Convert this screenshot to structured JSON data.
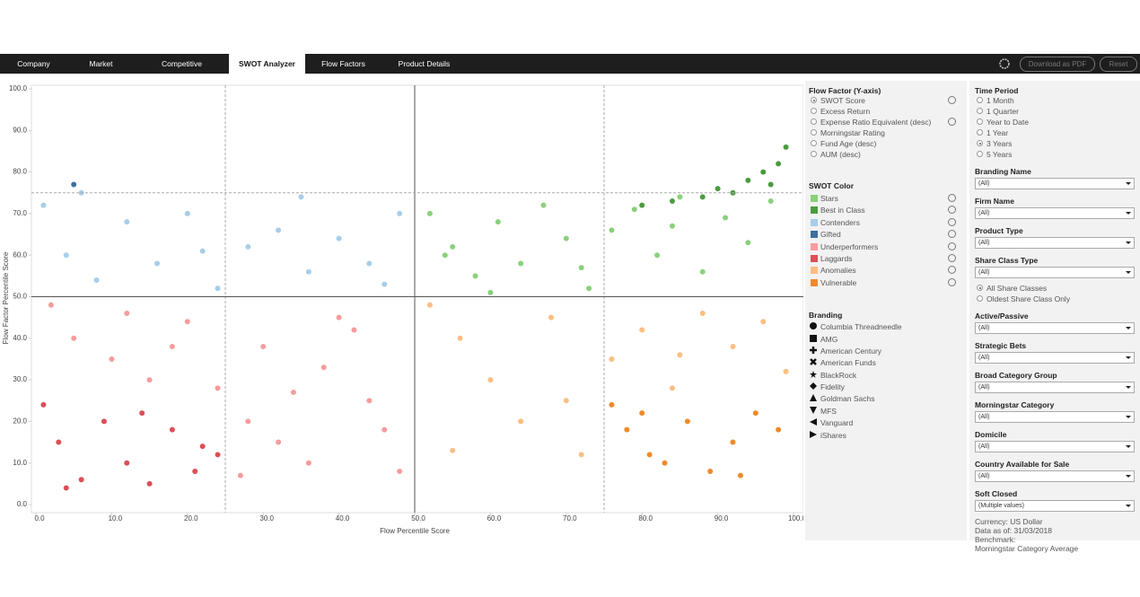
{
  "nav": {
    "tabs": [
      "Company",
      "Market",
      "Competitive",
      "SWOT Analyzer",
      "Flow Factors",
      "Product Details"
    ],
    "active": 3,
    "buttons": [
      "Download as PDF",
      "Reset"
    ]
  },
  "chart_data": {
    "type": "scatter",
    "x_label": "Flow Percentile Score",
    "y_label": "Flow Factor Percentile Score",
    "xlim": [
      0,
      100
    ],
    "ylim": [
      0,
      100
    ],
    "xticks": [
      {
        "value": 0,
        "label": "0.0"
      },
      {
        "value": 10,
        "label": "10.0"
      },
      {
        "value": 20,
        "label": "20.0"
      },
      {
        "value": 30,
        "label": "30.0"
      },
      {
        "value": 40,
        "label": "40.0"
      },
      {
        "value": 50,
        "label": "50.0"
      },
      {
        "value": 60,
        "label": "60.0"
      },
      {
        "value": 70,
        "label": "70.0"
      },
      {
        "value": 80,
        "label": "80.0"
      },
      {
        "value": 90,
        "label": "90.0"
      },
      {
        "value": 100,
        "label": "100.0"
      }
    ],
    "yticks": [
      {
        "value": 0,
        "label": "0.0"
      },
      {
        "value": 10,
        "label": "10.0"
      },
      {
        "value": 20,
        "label": "20.0"
      },
      {
        "value": 30,
        "label": "30.0"
      },
      {
        "value": 40,
        "label": "40.0"
      },
      {
        "value": 50,
        "label": "50.0"
      },
      {
        "value": 60,
        "label": "60.0"
      },
      {
        "value": 70,
        "label": "70.0"
      },
      {
        "value": 80,
        "label": "80.0"
      },
      {
        "value": 90,
        "label": "90.0"
      },
      {
        "value": 100,
        "label": "100.0"
      }
    ],
    "x_lines": [
      {
        "value": 25,
        "style": "dashed"
      },
      {
        "value": 50,
        "style": "solid"
      },
      {
        "value": 75,
        "style": "dashed"
      }
    ],
    "y_lines": [
      {
        "value": 50,
        "style": "solid"
      },
      {
        "value": 75,
        "style": "dashed"
      }
    ],
    "series": [
      {
        "name": "Stars",
        "color": "#8ad07c",
        "x": [
          52,
          55,
          58,
          61,
          64,
          67,
          70,
          73,
          76,
          79,
          82,
          85,
          88,
          91,
          94,
          97,
          60,
          72,
          84,
          54
        ],
        "y": [
          70,
          62,
          55,
          68,
          58,
          72,
          64,
          52,
          66,
          71,
          60,
          74,
          56,
          69,
          63,
          73,
          51,
          57,
          67,
          60
        ]
      },
      {
        "name": "Best in Class",
        "color": "#4b9b40",
        "x": [
          80,
          84,
          88,
          90,
          92,
          94,
          96,
          98,
          99,
          97
        ],
        "y": [
          72,
          73,
          74,
          76,
          75,
          78,
          80,
          82,
          86,
          77
        ]
      },
      {
        "name": "Contenders",
        "color": "#a8cde9",
        "x": [
          1,
          4,
          8,
          12,
          16,
          20,
          24,
          28,
          32,
          36,
          40,
          44,
          48,
          6,
          22,
          35,
          46
        ],
        "y": [
          72,
          60,
          54,
          68,
          58,
          70,
          52,
          62,
          66,
          56,
          64,
          58,
          70,
          75,
          61,
          74,
          53
        ]
      },
      {
        "name": "Gifted",
        "color": "#3f6f9f",
        "x": [
          5
        ],
        "y": [
          77
        ]
      },
      {
        "name": "Underperformers",
        "color": "#f79c9c",
        "x": [
          2,
          5,
          10,
          15,
          20,
          24,
          28,
          32,
          36,
          40,
          44,
          48,
          30,
          38,
          46,
          27,
          42,
          12,
          18,
          34
        ],
        "y": [
          48,
          40,
          35,
          30,
          44,
          28,
          20,
          15,
          10,
          45,
          25,
          8,
          38,
          33,
          18,
          7,
          42,
          46,
          38,
          27
        ]
      },
      {
        "name": "Laggards",
        "color": "#dd4f57",
        "x": [
          1,
          3,
          6,
          9,
          12,
          15,
          18,
          21,
          24,
          4,
          14,
          22
        ],
        "y": [
          24,
          15,
          6,
          20,
          10,
          5,
          18,
          8,
          12,
          4,
          22,
          14
        ]
      },
      {
        "name": "Anomalies",
        "color": "#fbbe82",
        "x": [
          52,
          56,
          60,
          64,
          68,
          72,
          76,
          80,
          84,
          88,
          92,
          96,
          99,
          55,
          70,
          85
        ],
        "y": [
          48,
          40,
          30,
          20,
          45,
          12,
          35,
          42,
          28,
          46,
          38,
          44,
          32,
          13,
          25,
          36
        ]
      },
      {
        "name": "Vulnerable",
        "color": "#ee8b2c",
        "x": [
          76,
          78,
          80,
          83,
          86,
          89,
          92,
          95,
          98,
          93,
          81
        ],
        "y": [
          24,
          18,
          22,
          10,
          20,
          8,
          15,
          22,
          18,
          7,
          12
        ]
      }
    ]
  },
  "flow_factor": {
    "title": "Flow Factor (Y-axis)",
    "options": [
      "SWOT Score",
      "Excess Return",
      "Expense Ratio Equivalent (desc)",
      "Morningstar Rating",
      "Fund Age (desc)",
      "AUM (desc)"
    ],
    "selected": 0
  },
  "swot_color_title": "SWOT Color",
  "branding": {
    "title": "Branding",
    "items": [
      "Columbia Threadneedle",
      "AMG",
      "American Century",
      "American Funds",
      "BlackRock",
      "Fidelity",
      "Goldman Sachs",
      "MFS",
      "Vanguard",
      "iShares"
    ]
  },
  "time_period": {
    "title": "Time Period",
    "options": [
      "1 Month",
      "1 Quarter",
      "Year to Date",
      "1 Year",
      "3 Years",
      "5 Years"
    ],
    "selected": 4
  },
  "filters_a": [
    {
      "label": "Branding Name",
      "value": "(All)"
    },
    {
      "label": "Firm Name",
      "value": "(All)"
    },
    {
      "label": "Product Type",
      "value": "(All)"
    },
    {
      "label": "Share Class Type",
      "value": "(All)"
    }
  ],
  "share_class": {
    "options": [
      "All Share Classes",
      "Oldest Share Class Only"
    ],
    "selected": 0
  },
  "filters_b": [
    {
      "label": "Active/Passive",
      "value": "(All)"
    },
    {
      "label": "Strategic Bets",
      "value": "(All)"
    },
    {
      "label": "Broad Category Group",
      "value": "(All)"
    },
    {
      "label": "Morningstar Category",
      "value": "(All)"
    },
    {
      "label": "Domicile",
      "value": "(All)"
    },
    {
      "label": "Country Available for Sale",
      "value": "(All)"
    },
    {
      "label": "Soft Closed",
      "value": "(Multiple values)"
    }
  ],
  "footer": [
    "Currency: US Dollar",
    "Data as of: 31/03/2018",
    "Benchmark:",
    "Morningstar Category Average"
  ]
}
